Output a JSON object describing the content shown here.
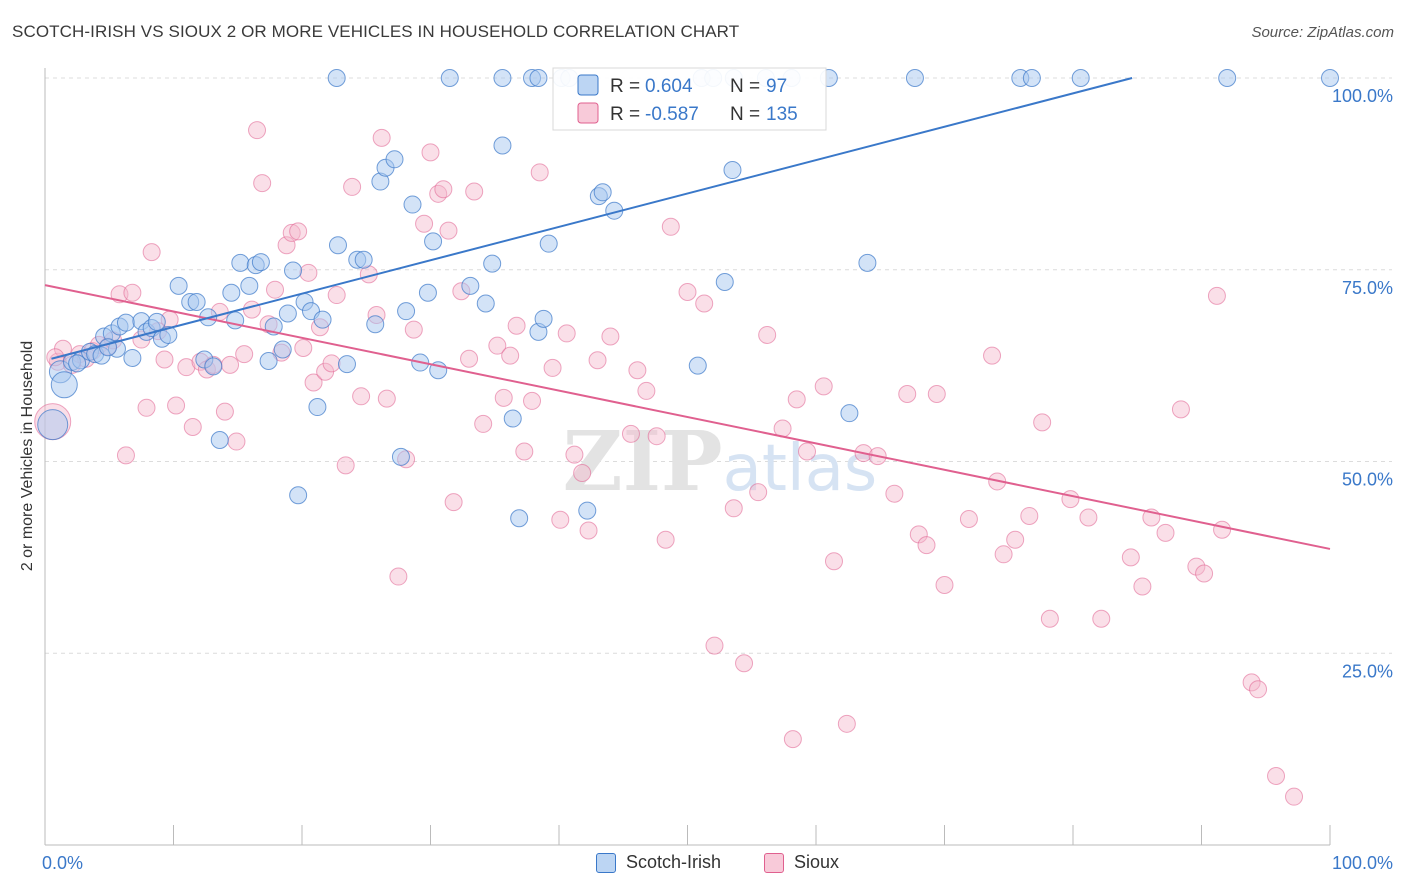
{
  "title": "SCOTCH-IRISH VS SIOUX 2 OR MORE VEHICLES IN HOUSEHOLD CORRELATION CHART",
  "source": "Source: ZipAtlas.com",
  "watermark": "ZIPatlas",
  "colors": {
    "blue": "#3a78c9",
    "blue_fill": "#a8c8f0",
    "pink": "#e0608f",
    "pink_fill": "#f5b8cc",
    "value_text": "#3a78c9"
  },
  "stats": {
    "row1": {
      "r_label": "R =",
      "r_value": "0.604",
      "n_label": "N =",
      "n_value": "97"
    },
    "row2": {
      "r_label": "R =",
      "r_value": "-0.587",
      "n_label": "N =",
      "n_value": "135"
    }
  },
  "legend": {
    "series1": "Scotch-Irish",
    "series2": "Sioux"
  },
  "chart_data": {
    "type": "scatter",
    "title": "SCOTCH-IRISH VS SIOUX 2 OR MORE VEHICLES IN HOUSEHOLD CORRELATION CHART",
    "xlabel": "",
    "ylabel": "2 or more Vehicles in Household",
    "xlim": [
      0,
      100
    ],
    "ylim": [
      0,
      100
    ],
    "x_ticks": [
      "0.0%",
      "100.0%"
    ],
    "y_ticks": [
      "25.0%",
      "50.0%",
      "75.0%",
      "100.0%"
    ],
    "grid": true,
    "legend_position": "bottom-center",
    "series": [
      {
        "name": "Scotch-Irish",
        "r": 0.604,
        "n": 97,
        "trend": {
          "x": [
            0.5,
            84.6
          ],
          "y": [
            63.4,
            100
          ]
        },
        "points": [
          [
            1.2,
            61.7
          ],
          [
            1.5,
            60.0
          ],
          [
            2.1,
            63.0
          ],
          [
            2.8,
            63.2
          ],
          [
            3.5,
            64.3
          ],
          [
            3.9,
            64.0
          ],
          [
            4.4,
            63.8
          ],
          [
            4.6,
            66.3
          ],
          [
            5.2,
            66.7
          ],
          [
            5.6,
            64.7
          ],
          [
            5.8,
            67.6
          ],
          [
            6.3,
            68.1
          ],
          [
            6.8,
            63.5
          ],
          [
            7.5,
            68.3
          ],
          [
            7.9,
            66.9
          ],
          [
            8.3,
            67.4
          ],
          [
            8.7,
            68.2
          ],
          [
            9.1,
            66.0
          ],
          [
            9.6,
            66.5
          ],
          [
            10.4,
            72.9
          ],
          [
            11.3,
            70.8
          ],
          [
            11.8,
            70.8
          ],
          [
            12.4,
            63.3
          ],
          [
            12.7,
            68.8
          ],
          [
            13.1,
            62.4
          ],
          [
            13.6,
            52.8
          ],
          [
            14.5,
            72.0
          ],
          [
            14.8,
            68.4
          ],
          [
            15.2,
            75.9
          ],
          [
            15.9,
            72.9
          ],
          [
            16.4,
            75.6
          ],
          [
            16.8,
            76.0
          ],
          [
            17.4,
            63.1
          ],
          [
            17.8,
            67.6
          ],
          [
            18.5,
            64.6
          ],
          [
            18.9,
            69.3
          ],
          [
            19.3,
            74.9
          ],
          [
            19.7,
            45.6
          ],
          [
            20.2,
            70.8
          ],
          [
            20.7,
            69.6
          ],
          [
            21.2,
            57.1
          ],
          [
            21.6,
            68.5
          ],
          [
            22.8,
            78.2
          ],
          [
            23.5,
            62.7
          ],
          [
            24.3,
            76.3
          ],
          [
            24.8,
            76.3
          ],
          [
            25.7,
            67.9
          ],
          [
            26.1,
            86.5
          ],
          [
            26.5,
            88.3
          ],
          [
            27.2,
            89.4
          ],
          [
            27.7,
            50.6
          ],
          [
            28.1,
            69.6
          ],
          [
            28.6,
            83.5
          ],
          [
            29.2,
            62.9
          ],
          [
            29.8,
            72.0
          ],
          [
            30.2,
            78.7
          ],
          [
            30.6,
            61.9
          ],
          [
            33.1,
            72.9
          ],
          [
            34.3,
            70.6
          ],
          [
            34.8,
            75.8
          ],
          [
            35.6,
            91.2
          ],
          [
            36.4,
            55.6
          ],
          [
            36.9,
            42.6
          ],
          [
            38.4,
            66.9
          ],
          [
            38.8,
            68.6
          ],
          [
            39.2,
            78.4
          ],
          [
            42.2,
            43.6
          ],
          [
            43.1,
            84.6
          ],
          [
            43.4,
            85.1
          ],
          [
            44.3,
            82.7
          ],
          [
            50.8,
            62.5
          ],
          [
            52.9,
            73.4
          ],
          [
            53.5,
            88.0
          ],
          [
            62.6,
            56.3
          ],
          [
            64.0,
            75.9
          ],
          [
            0.6,
            54.8
          ],
          [
            22.7,
            100
          ],
          [
            31.5,
            100
          ],
          [
            35.6,
            100
          ],
          [
            37.9,
            100
          ],
          [
            38.4,
            100
          ],
          [
            40.2,
            100
          ],
          [
            40.8,
            100
          ],
          [
            51.1,
            100
          ],
          [
            52.0,
            100
          ],
          [
            53.6,
            100
          ],
          [
            56.1,
            100
          ],
          [
            58.1,
            100
          ],
          [
            61.0,
            100
          ],
          [
            67.7,
            100
          ],
          [
            75.9,
            100
          ],
          [
            76.8,
            100
          ],
          [
            80.6,
            100
          ],
          [
            92.0,
            100
          ],
          [
            100.0,
            100
          ],
          [
            2.5,
            62.8
          ],
          [
            4.9,
            64.9
          ]
        ]
      },
      {
        "name": "Sioux",
        "r": -0.587,
        "n": 135,
        "trend": {
          "x": [
            0,
            100
          ],
          "y": [
            73.0,
            38.6
          ]
        },
        "points": [
          [
            0.6,
            55.2
          ],
          [
            1.0,
            63.0
          ],
          [
            1.4,
            64.7
          ],
          [
            2.1,
            62.6
          ],
          [
            2.7,
            64.0
          ],
          [
            3.2,
            63.4
          ],
          [
            3.7,
            64.4
          ],
          [
            4.2,
            65.2
          ],
          [
            4.9,
            65.0
          ],
          [
            5.3,
            65.8
          ],
          [
            5.8,
            71.8
          ],
          [
            6.3,
            50.8
          ],
          [
            6.8,
            72.0
          ],
          [
            7.5,
            65.9
          ],
          [
            7.9,
            57.0
          ],
          [
            8.3,
            77.3
          ],
          [
            8.8,
            67.0
          ],
          [
            9.3,
            63.3
          ],
          [
            9.7,
            68.5
          ],
          [
            10.2,
            57.3
          ],
          [
            11.0,
            62.3
          ],
          [
            11.5,
            54.5
          ],
          [
            12.1,
            63.0
          ],
          [
            12.6,
            62.0
          ],
          [
            13.1,
            62.6
          ],
          [
            13.6,
            69.5
          ],
          [
            14.0,
            56.5
          ],
          [
            14.4,
            62.6
          ],
          [
            14.9,
            52.6
          ],
          [
            15.5,
            64.0
          ],
          [
            16.1,
            69.8
          ],
          [
            16.5,
            93.2
          ],
          [
            16.9,
            86.3
          ],
          [
            17.4,
            67.9
          ],
          [
            17.9,
            72.4
          ],
          [
            18.4,
            64.2
          ],
          [
            18.8,
            78.2
          ],
          [
            19.2,
            79.8
          ],
          [
            19.7,
            80.0
          ],
          [
            20.1,
            64.8
          ],
          [
            20.5,
            74.6
          ],
          [
            20.9,
            60.3
          ],
          [
            21.4,
            67.5
          ],
          [
            21.8,
            61.7
          ],
          [
            22.3,
            62.8
          ],
          [
            22.7,
            71.7
          ],
          [
            23.4,
            49.5
          ],
          [
            23.9,
            85.8
          ],
          [
            24.6,
            58.5
          ],
          [
            25.2,
            74.4
          ],
          [
            25.8,
            69.1
          ],
          [
            26.2,
            92.2
          ],
          [
            26.6,
            58.2
          ],
          [
            27.5,
            35.0
          ],
          [
            28.1,
            50.3
          ],
          [
            28.7,
            67.2
          ],
          [
            29.5,
            81.0
          ],
          [
            30.0,
            90.3
          ],
          [
            30.6,
            84.9
          ],
          [
            31.0,
            85.5
          ],
          [
            31.4,
            80.1
          ],
          [
            31.8,
            44.7
          ],
          [
            32.4,
            72.2
          ],
          [
            33.0,
            63.4
          ],
          [
            33.4,
            85.2
          ],
          [
            34.1,
            54.9
          ],
          [
            35.2,
            65.1
          ],
          [
            35.7,
            58.3
          ],
          [
            36.2,
            63.8
          ],
          [
            36.7,
            67.7
          ],
          [
            37.3,
            51.3
          ],
          [
            37.9,
            57.9
          ],
          [
            38.5,
            87.7
          ],
          [
            39.5,
            62.2
          ],
          [
            40.1,
            42.4
          ],
          [
            40.6,
            66.7
          ],
          [
            41.2,
            50.9
          ],
          [
            41.8,
            48.5
          ],
          [
            42.3,
            41.0
          ],
          [
            43.0,
            63.2
          ],
          [
            44.0,
            66.3
          ],
          [
            45.6,
            53.6
          ],
          [
            46.1,
            61.9
          ],
          [
            46.8,
            59.2
          ],
          [
            47.6,
            53.3
          ],
          [
            48.3,
            39.8
          ],
          [
            48.7,
            80.6
          ],
          [
            50.0,
            72.1
          ],
          [
            51.3,
            70.6
          ],
          [
            52.1,
            26.0
          ],
          [
            53.6,
            43.9
          ],
          [
            54.4,
            23.7
          ],
          [
            55.5,
            46.0
          ],
          [
            56.2,
            66.5
          ],
          [
            57.4,
            54.3
          ],
          [
            58.5,
            58.1
          ],
          [
            59.3,
            51.3
          ],
          [
            60.6,
            59.8
          ],
          [
            61.4,
            37.0
          ],
          [
            62.4,
            15.8
          ],
          [
            63.7,
            51.1
          ],
          [
            64.8,
            50.7
          ],
          [
            66.1,
            45.8
          ],
          [
            67.1,
            58.8
          ],
          [
            68.0,
            40.5
          ],
          [
            68.6,
            39.1
          ],
          [
            69.4,
            58.8
          ],
          [
            70.0,
            33.9
          ],
          [
            71.9,
            42.5
          ],
          [
            73.7,
            63.8
          ],
          [
            74.1,
            47.4
          ],
          [
            74.6,
            37.9
          ],
          [
            75.5,
            39.8
          ],
          [
            76.6,
            42.9
          ],
          [
            77.6,
            55.1
          ],
          [
            78.2,
            29.5
          ],
          [
            79.8,
            45.1
          ],
          [
            81.2,
            42.7
          ],
          [
            82.2,
            29.5
          ],
          [
            84.5,
            37.5
          ],
          [
            85.4,
            33.7
          ],
          [
            86.1,
            42.7
          ],
          [
            87.2,
            40.7
          ],
          [
            88.4,
            56.8
          ],
          [
            89.6,
            36.3
          ],
          [
            90.2,
            35.4
          ],
          [
            91.2,
            71.6
          ],
          [
            91.6,
            41.1
          ],
          [
            93.9,
            21.2
          ],
          [
            94.4,
            20.3
          ],
          [
            95.8,
            9.0
          ],
          [
            97.2,
            6.3
          ],
          [
            58.2,
            13.8
          ],
          [
            0.8,
            63.6
          ]
        ]
      }
    ]
  }
}
